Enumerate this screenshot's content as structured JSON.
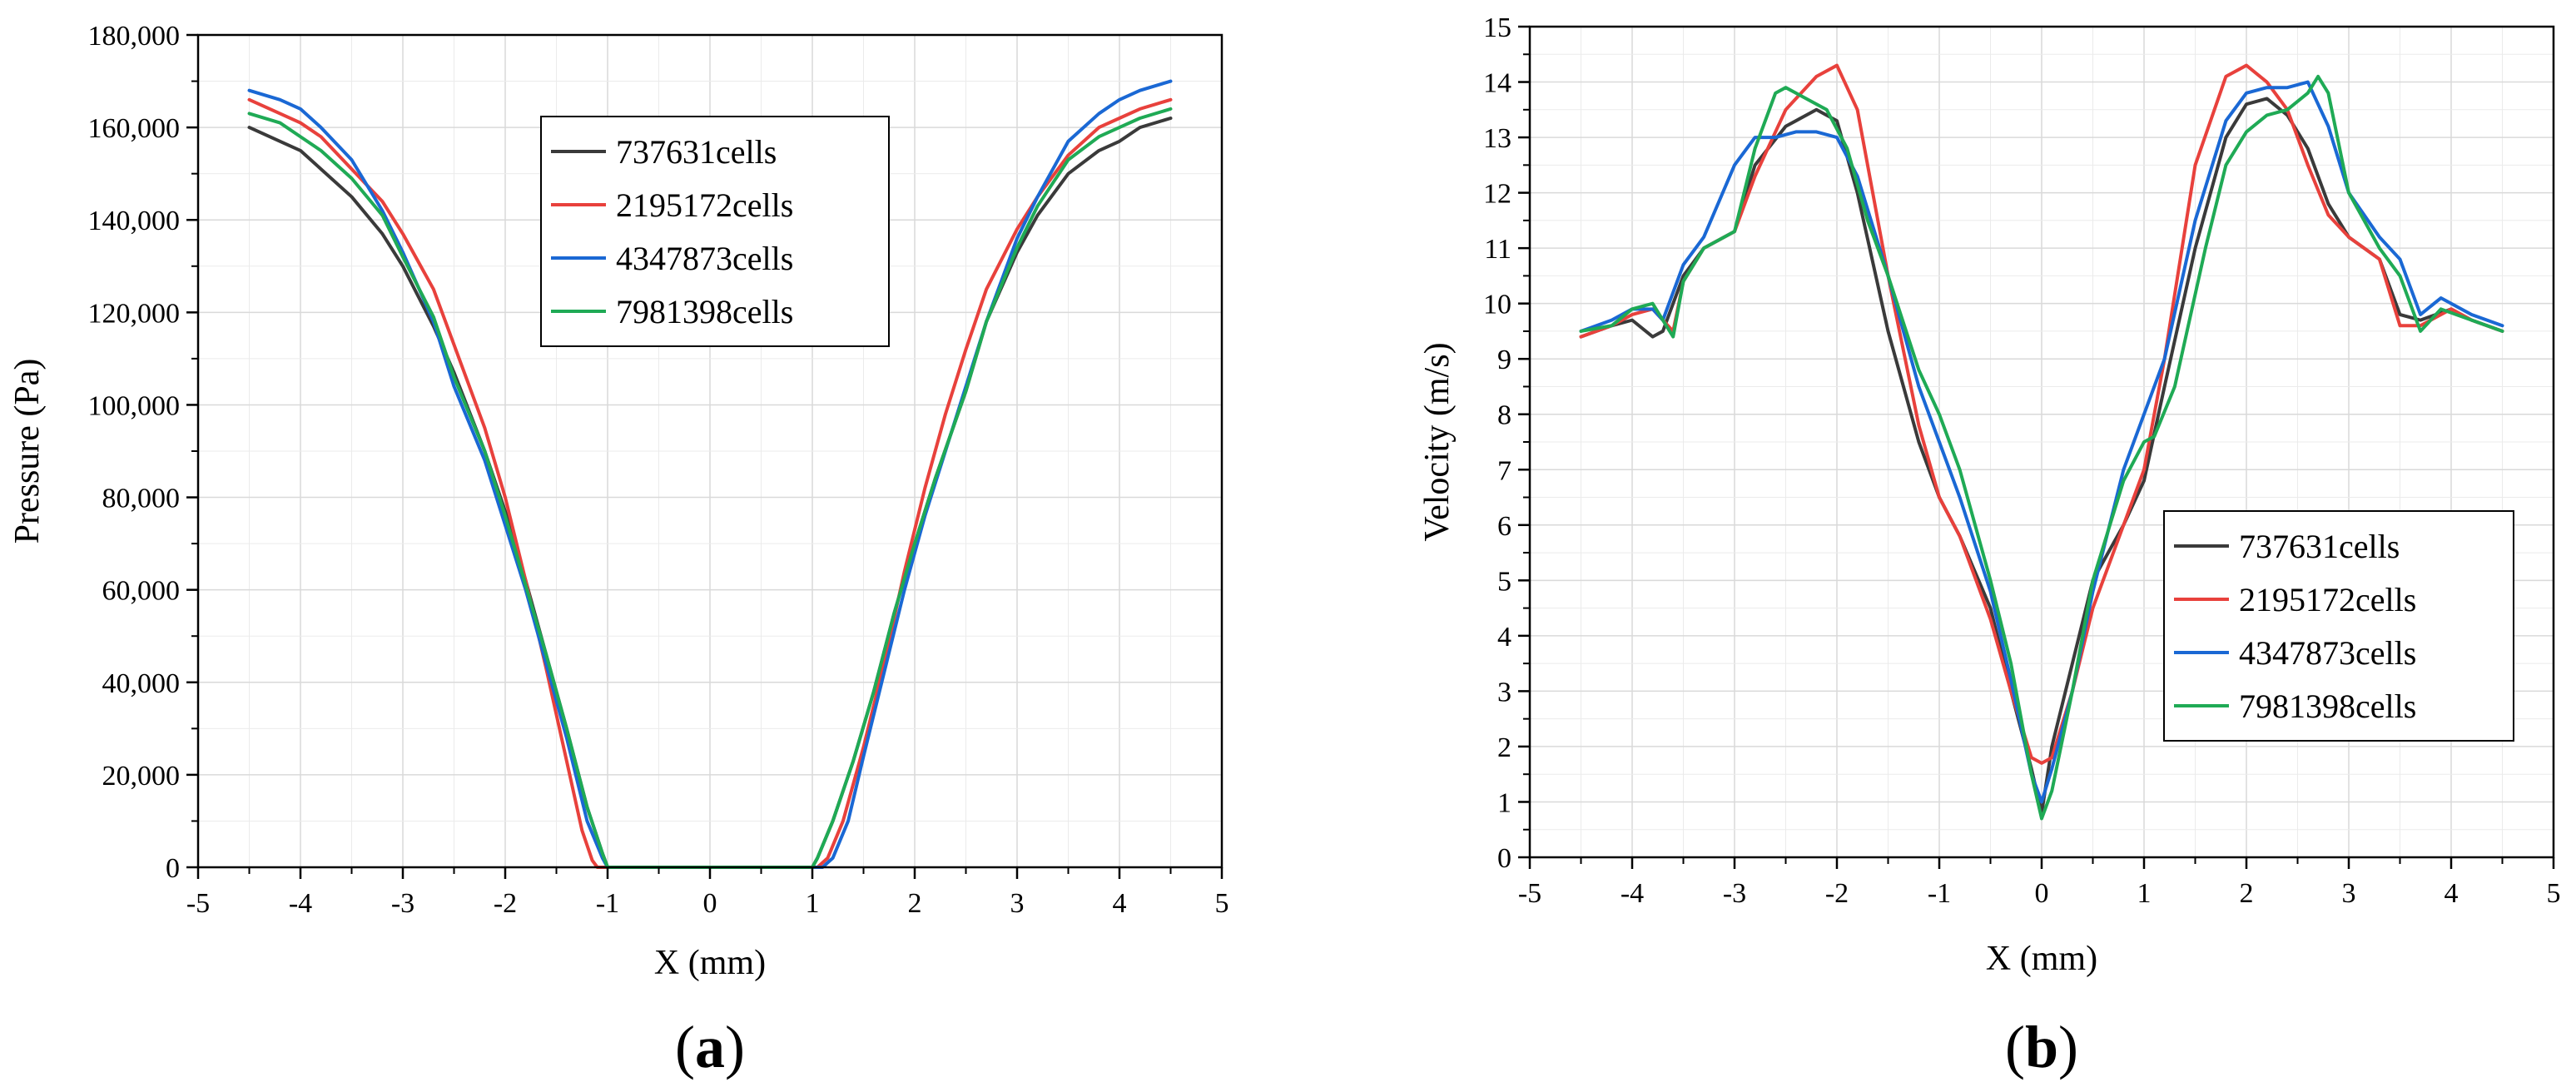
{
  "chart_data": [
    {
      "type": "line",
      "title": "",
      "xlabel": "X (mm)",
      "ylabel": "Pressure (Pa)",
      "xlim": [
        -5,
        5
      ],
      "ylim": [
        0,
        180000
      ],
      "x_ticks": [
        -5,
        -4,
        -3,
        -2,
        -1,
        0,
        1,
        2,
        3,
        4,
        5
      ],
      "y_ticks": [
        0,
        20000,
        40000,
        60000,
        80000,
        100000,
        120000,
        140000,
        160000,
        180000
      ],
      "x_tick_labels": [
        "-5",
        "-4",
        "-3",
        "-2",
        "-1",
        "0",
        "1",
        "2",
        "3",
        "4",
        "5"
      ],
      "y_tick_labels": [
        "0",
        "20,000",
        "40,000",
        "60,000",
        "80,000",
        "100,000",
        "120,000",
        "140,000",
        "160,000",
        "180,000"
      ],
      "grid": true,
      "legend_position": "top-center",
      "panel_label": "(a)",
      "series": [
        {
          "name": "737631cells",
          "color": "#3a3a3a",
          "x": [
            -4.5,
            -4.2,
            -4.0,
            -3.8,
            -3.5,
            -3.2,
            -3.0,
            -2.7,
            -2.5,
            -2.2,
            -2.0,
            -1.8,
            -1.6,
            -1.4,
            -1.2,
            -1.05,
            -1.0,
            -0.5,
            0,
            0.5,
            1.0,
            1.05,
            1.2,
            1.4,
            1.6,
            1.8,
            2.0,
            2.2,
            2.5,
            2.7,
            3.0,
            3.2,
            3.5,
            3.8,
            4.0,
            4.2,
            4.5
          ],
          "y": [
            160000,
            157000,
            155000,
            151000,
            145000,
            137000,
            130000,
            117000,
            107000,
            90000,
            77000,
            62000,
            46000,
            30000,
            13000,
            3000,
            0,
            0,
            0,
            0,
            0,
            2000,
            10000,
            23000,
            38000,
            55000,
            70000,
            84000,
            103000,
            118000,
            133000,
            141000,
            150000,
            155000,
            157000,
            160000,
            162000
          ]
        },
        {
          "name": "2195172cells",
          "color": "#e8413c",
          "x": [
            -4.5,
            -4.2,
            -4.0,
            -3.8,
            -3.5,
            -3.2,
            -3.0,
            -2.7,
            -2.5,
            -2.2,
            -2.0,
            -1.8,
            -1.6,
            -1.4,
            -1.25,
            -1.15,
            -1.1,
            -0.5,
            0,
            0.5,
            1.05,
            1.15,
            1.3,
            1.5,
            1.7,
            1.9,
            2.1,
            2.3,
            2.5,
            2.7,
            3.0,
            3.2,
            3.5,
            3.8,
            4.0,
            4.2,
            4.5
          ],
          "y": [
            166000,
            163000,
            161000,
            158000,
            151000,
            144000,
            137000,
            125000,
            113000,
            95000,
            80000,
            62000,
            43000,
            23000,
            8000,
            1500,
            0,
            0,
            0,
            0,
            0,
            2000,
            10000,
            26000,
            44000,
            64000,
            82000,
            98000,
            112000,
            125000,
            138000,
            145000,
            154000,
            160000,
            162000,
            164000,
            166000
          ]
        },
        {
          "name": "4347873cells",
          "color": "#1a68d4",
          "x": [
            -4.5,
            -4.2,
            -4.0,
            -3.8,
            -3.5,
            -3.2,
            -3.0,
            -2.7,
            -2.5,
            -2.2,
            -2.0,
            -1.8,
            -1.6,
            -1.4,
            -1.2,
            -1.05,
            -1.0,
            -0.5,
            0,
            0.5,
            1.1,
            1.2,
            1.35,
            1.5,
            1.7,
            1.9,
            2.1,
            2.3,
            2.5,
            2.7,
            3.0,
            3.2,
            3.5,
            3.8,
            4.0,
            4.2,
            4.5
          ],
          "y": [
            168000,
            166000,
            164000,
            160000,
            153000,
            142000,
            133000,
            118000,
            104000,
            88000,
            74000,
            60000,
            44000,
            28000,
            10000,
            2000,
            0,
            0,
            0,
            0,
            0,
            2000,
            10000,
            24000,
            42000,
            60000,
            76000,
            90000,
            104000,
            118000,
            136000,
            145000,
            157000,
            163000,
            166000,
            168000,
            170000
          ]
        },
        {
          "name": "7981398cells",
          "color": "#1faa55",
          "x": [
            -4.5,
            -4.2,
            -4.0,
            -3.8,
            -3.5,
            -3.2,
            -3.0,
            -2.7,
            -2.5,
            -2.2,
            -2.0,
            -1.8,
            -1.6,
            -1.4,
            -1.2,
            -1.05,
            -1.0,
            -0.5,
            0,
            0.5,
            1.0,
            1.05,
            1.2,
            1.4,
            1.6,
            1.8,
            2.0,
            2.2,
            2.5,
            2.7,
            3.0,
            3.2,
            3.5,
            3.8,
            4.0,
            4.2,
            4.5
          ],
          "y": [
            163000,
            161000,
            158000,
            155000,
            149000,
            141000,
            132000,
            119000,
            106000,
            90000,
            76000,
            61000,
            46000,
            30000,
            13000,
            3000,
            0,
            0,
            0,
            0,
            0,
            2000,
            10000,
            23000,
            38000,
            55000,
            70000,
            84000,
            103000,
            118000,
            134000,
            143000,
            153000,
            158000,
            160000,
            162000,
            164000
          ]
        }
      ]
    },
    {
      "type": "line",
      "title": "",
      "xlabel": "X (mm)",
      "ylabel": "Velocity (m/s)",
      "xlim": [
        -5,
        5
      ],
      "ylim": [
        0,
        15
      ],
      "x_ticks": [
        -5,
        -4,
        -3,
        -2,
        -1,
        0,
        1,
        2,
        3,
        4,
        5
      ],
      "y_ticks": [
        0,
        1,
        2,
        3,
        4,
        5,
        6,
        7,
        8,
        9,
        10,
        11,
        12,
        13,
        14,
        15
      ],
      "x_tick_labels": [
        "-5",
        "-4",
        "-3",
        "-2",
        "-1",
        "0",
        "1",
        "2",
        "3",
        "4",
        "5"
      ],
      "y_tick_labels": [
        "0",
        "1",
        "2",
        "3",
        "4",
        "5",
        "6",
        "7",
        "8",
        "9",
        "10",
        "11",
        "12",
        "13",
        "14",
        "15"
      ],
      "grid": true,
      "legend_position": "bottom-right",
      "panel_label": "(b)",
      "series": [
        {
          "name": "737631cells",
          "color": "#3a3a3a",
          "x": [
            -4.5,
            -4.2,
            -4.0,
            -3.8,
            -3.7,
            -3.5,
            -3.3,
            -3.0,
            -2.8,
            -2.5,
            -2.2,
            -2.0,
            -1.8,
            -1.5,
            -1.2,
            -1.0,
            -0.8,
            -0.5,
            -0.3,
            -0.1,
            0,
            0.1,
            0.3,
            0.5,
            0.8,
            1.0,
            1.2,
            1.5,
            1.8,
            2.0,
            2.2,
            2.4,
            2.6,
            2.8,
            3.0,
            3.3,
            3.5,
            3.7,
            4.0,
            4.2,
            4.5
          ],
          "y": [
            9.4,
            9.6,
            9.7,
            9.4,
            9.5,
            10.5,
            11.0,
            11.3,
            12.5,
            13.2,
            13.5,
            13.3,
            12.0,
            9.5,
            7.5,
            6.5,
            5.8,
            4.5,
            3.0,
            1.6,
            0.8,
            2.0,
            3.5,
            5.0,
            6.0,
            6.8,
            8.5,
            11.0,
            13.0,
            13.6,
            13.7,
            13.4,
            12.8,
            11.8,
            11.2,
            10.8,
            9.8,
            9.7,
            9.9,
            9.7,
            9.5
          ]
        },
        {
          "name": "2195172cells",
          "color": "#e8413c",
          "x": [
            -4.5,
            -4.2,
            -4.0,
            -3.8,
            -3.6,
            -3.5,
            -3.3,
            -3.0,
            -2.8,
            -2.5,
            -2.2,
            -2.0,
            -1.8,
            -1.5,
            -1.2,
            -1.0,
            -0.8,
            -0.5,
            -0.3,
            -0.1,
            0,
            0.1,
            0.3,
            0.5,
            0.8,
            1.0,
            1.2,
            1.5,
            1.8,
            2.0,
            2.2,
            2.4,
            2.6,
            2.8,
            3.0,
            3.3,
            3.5,
            3.7,
            4.0,
            4.2,
            4.5
          ],
          "y": [
            9.4,
            9.6,
            9.8,
            9.9,
            9.5,
            10.4,
            11.0,
            11.3,
            12.3,
            13.5,
            14.1,
            14.3,
            13.5,
            10.5,
            7.8,
            6.5,
            5.8,
            4.3,
            3.0,
            1.8,
            1.7,
            1.8,
            3.0,
            4.5,
            6.0,
            7.0,
            9.0,
            12.5,
            14.1,
            14.3,
            14.0,
            13.5,
            12.5,
            11.6,
            11.2,
            10.8,
            9.6,
            9.6,
            9.9,
            9.7,
            9.5
          ]
        },
        {
          "name": "4347873cells",
          "color": "#1a68d4",
          "x": [
            -4.5,
            -4.2,
            -4.0,
            -3.8,
            -3.7,
            -3.5,
            -3.3,
            -3.0,
            -2.8,
            -2.6,
            -2.4,
            -2.2,
            -2.0,
            -1.8,
            -1.5,
            -1.2,
            -1.0,
            -0.8,
            -0.5,
            -0.3,
            -0.1,
            0,
            0.1,
            0.3,
            0.5,
            0.8,
            1.0,
            1.2,
            1.5,
            1.8,
            2.0,
            2.2,
            2.4,
            2.6,
            2.8,
            3.0,
            3.3,
            3.5,
            3.7,
            3.9,
            4.2,
            4.5
          ],
          "y": [
            9.5,
            9.7,
            9.9,
            9.9,
            9.7,
            10.7,
            11.2,
            12.5,
            13.0,
            13.0,
            13.1,
            13.1,
            13.0,
            12.3,
            10.5,
            8.5,
            7.5,
            6.5,
            4.8,
            3.2,
            1.5,
            1.0,
            1.6,
            3.0,
            4.8,
            7.0,
            8.0,
            9.0,
            11.5,
            13.3,
            13.8,
            13.9,
            13.9,
            14.0,
            13.2,
            12.0,
            11.2,
            10.8,
            9.8,
            10.1,
            9.8,
            9.6
          ]
        },
        {
          "name": "7981398cells",
          "color": "#1faa55",
          "x": [
            -4.5,
            -4.2,
            -4.0,
            -3.8,
            -3.6,
            -3.5,
            -3.3,
            -3.0,
            -2.8,
            -2.6,
            -2.5,
            -2.3,
            -2.1,
            -1.9,
            -1.7,
            -1.5,
            -1.2,
            -1.0,
            -0.8,
            -0.5,
            -0.3,
            -0.1,
            0,
            0.1,
            0.3,
            0.5,
            0.8,
            1.0,
            1.1,
            1.3,
            1.6,
            1.8,
            2.0,
            2.2,
            2.4,
            2.6,
            2.7,
            2.8,
            3.0,
            3.3,
            3.5,
            3.7,
            3.9,
            4.2,
            4.5
          ],
          "y": [
            9.5,
            9.6,
            9.9,
            10.0,
            9.4,
            10.4,
            11.0,
            11.3,
            12.8,
            13.8,
            13.9,
            13.7,
            13.5,
            12.8,
            11.5,
            10.5,
            8.8,
            8.0,
            7.0,
            5.0,
            3.5,
            1.5,
            0.7,
            1.2,
            3.0,
            5.0,
            6.8,
            7.5,
            7.6,
            8.5,
            11.0,
            12.5,
            13.1,
            13.4,
            13.5,
            13.8,
            14.1,
            13.8,
            12.0,
            11.0,
            10.5,
            9.5,
            9.9,
            9.7,
            9.5
          ]
        }
      ]
    }
  ]
}
